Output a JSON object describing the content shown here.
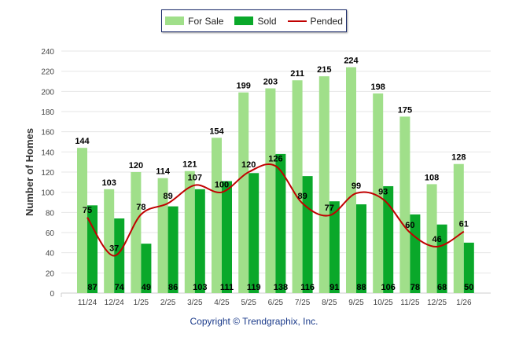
{
  "chart_data": {
    "type": "bar",
    "categories": [
      "11/24",
      "12/24",
      "1/25",
      "2/25",
      "3/25",
      "4/25",
      "5/25",
      "6/25",
      "7/25",
      "8/25",
      "9/25",
      "10/25",
      "11/25",
      "12/25",
      "1/26"
    ],
    "series": [
      {
        "name": "For Sale",
        "type": "bar",
        "color": "#a0df8a",
        "values": [
          144,
          103,
          120,
          114,
          121,
          154,
          199,
          203,
          211,
          215,
          224,
          198,
          175,
          108,
          128
        ]
      },
      {
        "name": "Sold",
        "type": "bar",
        "color": "#0aa82a",
        "values": [
          87,
          74,
          49,
          86,
          103,
          111,
          119,
          138,
          116,
          91,
          88,
          106,
          78,
          68,
          50
        ]
      },
      {
        "name": "Pended",
        "type": "line",
        "color": "#c00000",
        "values": [
          75,
          37,
          78,
          89,
          107,
          100,
          120,
          126,
          89,
          77,
          99,
          93,
          60,
          46,
          61
        ]
      }
    ],
    "ylabel": "Number of Homes",
    "xlabel": "",
    "ylim": [
      0,
      240
    ],
    "yticks": [
      0,
      20,
      40,
      60,
      80,
      100,
      120,
      140,
      160,
      180,
      200,
      220,
      240
    ],
    "grid": true,
    "legend_position": "top-center"
  },
  "footer": {
    "copyright": "Copyright © Trendgraphix, Inc."
  }
}
